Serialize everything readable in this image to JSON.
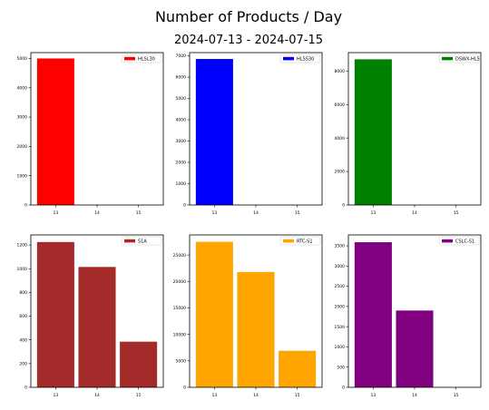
{
  "figure": {
    "title": "Number of Products / Day",
    "subtitle": "2024-07-13 - 2024-07-15"
  },
  "chart_data": [
    {
      "type": "bar",
      "categories": [
        "13",
        "14",
        "15"
      ],
      "series": [
        {
          "name": "HLSL30",
          "values": [
            5000,
            0,
            0
          ],
          "color": "#ff0000"
        }
      ],
      "ylim": [
        0,
        5200
      ],
      "yticks": [
        0,
        1000,
        2000,
        3000,
        4000,
        5000
      ],
      "legend": "top-right",
      "grid": false
    },
    {
      "type": "bar",
      "categories": [
        "13",
        "14",
        "15"
      ],
      "series": [
        {
          "name": "HLSS30",
          "values": [
            6850,
            0,
            0
          ],
          "color": "#0000ff"
        }
      ],
      "ylim": [
        0,
        7150
      ],
      "yticks": [
        0,
        1000,
        2000,
        3000,
        4000,
        5000,
        6000,
        7000
      ],
      "legend": "top-right",
      "grid": false
    },
    {
      "type": "bar",
      "categories": [
        "13",
        "14",
        "15"
      ],
      "series": [
        {
          "name": "DSWX-HLS",
          "values": [
            8700,
            0,
            0
          ],
          "color": "#008000"
        }
      ],
      "ylim": [
        0,
        9100
      ],
      "yticks": [
        0,
        2000,
        4000,
        6000,
        8000
      ],
      "legend": "top-right",
      "grid": false
    },
    {
      "type": "bar",
      "categories": [
        "13",
        "14",
        "15"
      ],
      "series": [
        {
          "name": "S1A",
          "values": [
            1225,
            1015,
            385
          ],
          "color": "#a52a2a"
        }
      ],
      "ylim": [
        0,
        1285
      ],
      "yticks": [
        0,
        200,
        400,
        600,
        800,
        1000,
        1200
      ],
      "legend": "top-right",
      "grid": false
    },
    {
      "type": "bar",
      "categories": [
        "13",
        "14",
        "15"
      ],
      "series": [
        {
          "name": "RTC-S1",
          "values": [
            27500,
            21800,
            6900
          ],
          "color": "#ffa500"
        }
      ],
      "ylim": [
        0,
        28800
      ],
      "yticks": [
        0,
        5000,
        10000,
        15000,
        20000,
        25000
      ],
      "legend": "top-right",
      "grid": false
    },
    {
      "type": "bar",
      "categories": [
        "13",
        "14",
        "15"
      ],
      "series": [
        {
          "name": "CSLC-S1",
          "values": [
            3590,
            1900,
            0
          ],
          "color": "#800080"
        }
      ],
      "ylim": [
        0,
        3770
      ],
      "yticks": [
        0,
        500,
        1000,
        1500,
        2000,
        2500,
        3000,
        3500
      ],
      "legend": "top-right",
      "grid": false
    }
  ]
}
